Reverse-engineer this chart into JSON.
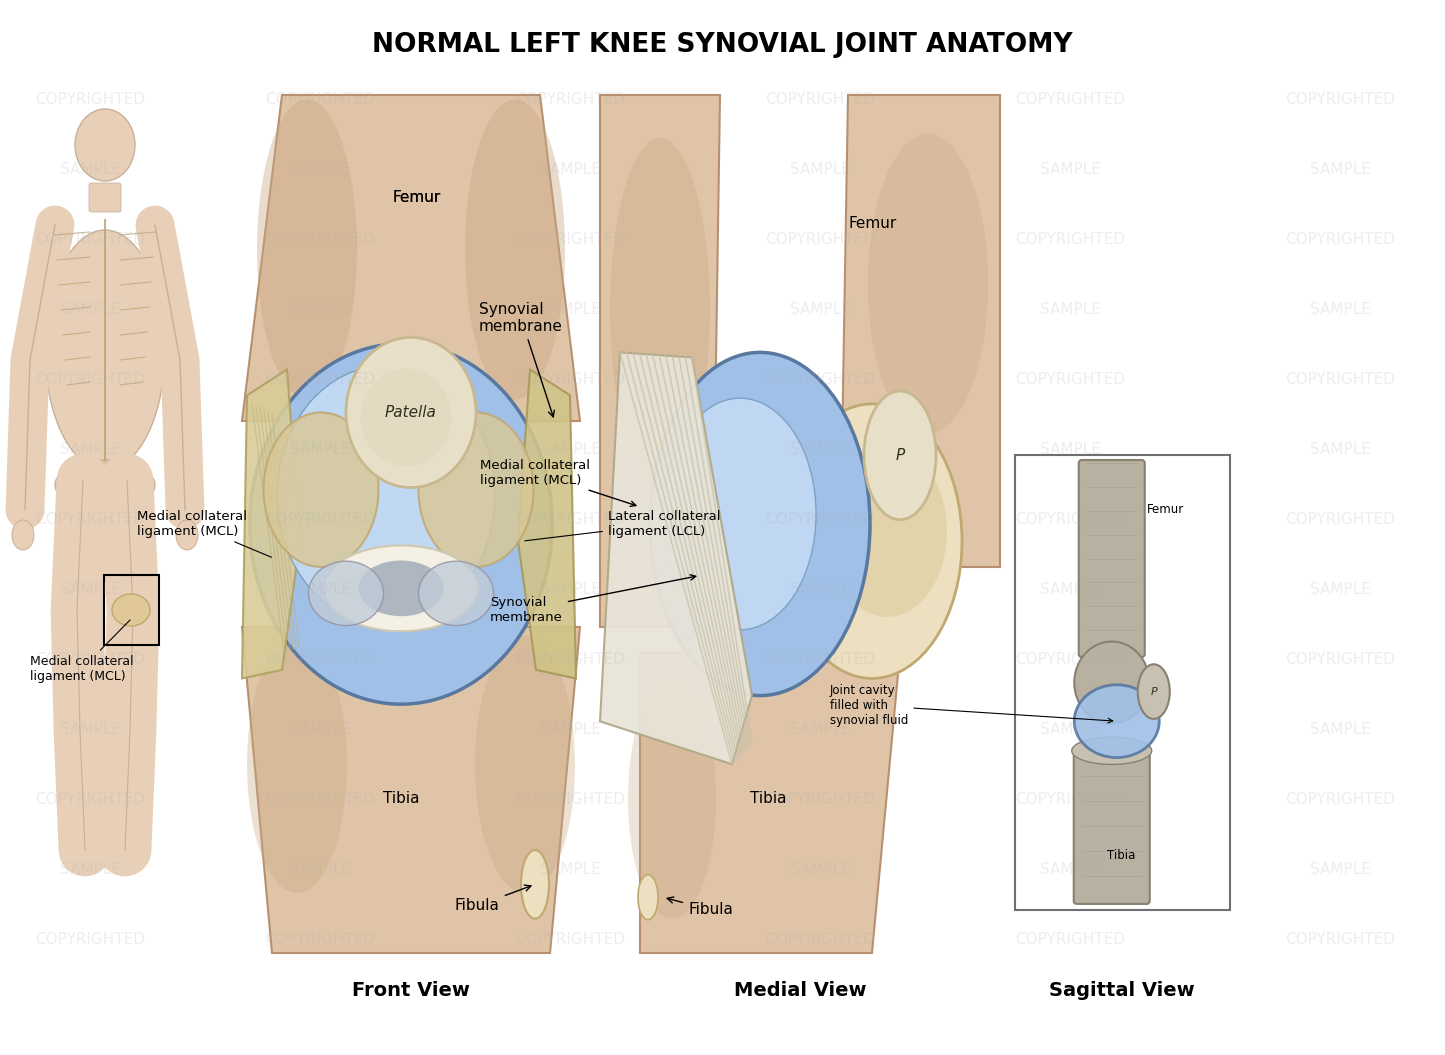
{
  "title": "NORMAL LEFT KNEE SYNOVIAL JOINT ANATOMY",
  "title_fontsize": 19,
  "title_fontweight": "bold",
  "background_color": "#ffffff",
  "skin_light": "#dfc4a8",
  "skin_mid": "#c9a882",
  "skin_dark": "#b89070",
  "skin_shadow": "#a87858",
  "bone_light": "#ede0c0",
  "bone_mid": "#d8c898",
  "bone_dark": "#c0a870",
  "syn_light": "#c8ddf5",
  "syn_mid": "#a0c0e8",
  "syn_dark": "#7098c0",
  "syn_rim": "#5878a0",
  "lig_white": "#e8e4d8",
  "lig_gray": "#c0b8a0",
  "meniscus_c": "#f5f0e5",
  "pat_light": "#e8dfc8",
  "pat_dark": "#c8b890",
  "wm_color": "#b0b0b0",
  "wm_alpha": 0.22,
  "front_view_label": "Front View",
  "medial_view_label": "Medial View",
  "sagittal_view_label": "Sagittal View",
  "label_fontsize": 14,
  "label_fontweight": "bold",
  "ann_fontsize": 11,
  "ann_fontsize_small": 9
}
